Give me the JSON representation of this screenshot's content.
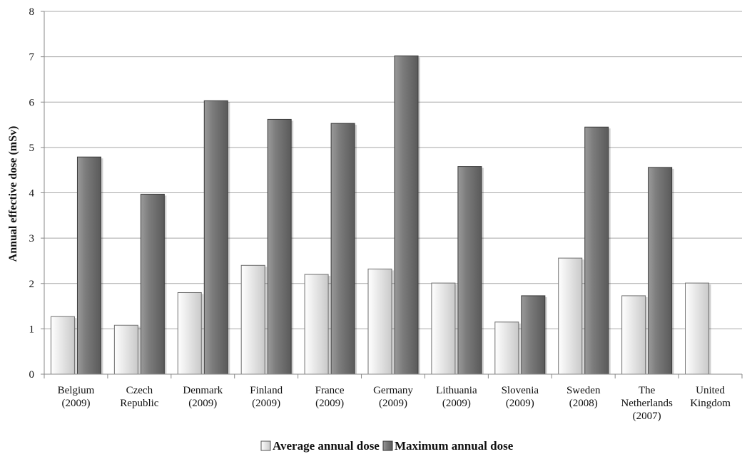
{
  "chart_data": {
    "type": "bar",
    "categories": [
      [
        "Belgium",
        "(2009)"
      ],
      [
        "Czech",
        "Republic"
      ],
      [
        "Denmark",
        "(2009)"
      ],
      [
        "Finland",
        "(2009)"
      ],
      [
        "France",
        "(2009)"
      ],
      [
        "Germany",
        "(2009)"
      ],
      [
        "Lithuania",
        "(2009)"
      ],
      [
        "Slovenia",
        "(2009)"
      ],
      [
        "Sweden",
        "(2008)"
      ],
      [
        "The",
        "Netherlands",
        "(2007)"
      ],
      [
        "United",
        "Kingdom"
      ]
    ],
    "series": [
      {
        "name": "Average annual dose",
        "color": "#e8e8e8",
        "values": [
          1.27,
          1.08,
          1.8,
          2.4,
          2.2,
          2.32,
          2.01,
          1.15,
          2.56,
          1.73,
          2.01
        ]
      },
      {
        "name": "Maximum annual dose",
        "color": "#7a7a7a",
        "values": [
          4.79,
          3.97,
          6.03,
          5.62,
          5.53,
          7.02,
          4.58,
          1.73,
          5.45,
          4.56,
          null
        ]
      }
    ],
    "ylabel": "Annual effective dose (mSv)",
    "xlabel": "",
    "ylim": [
      0,
      8
    ],
    "yticks": [
      "0",
      "1",
      "2",
      "3",
      "4",
      "5",
      "6",
      "7",
      "8"
    ],
    "grid": true,
    "legend": "bottom"
  }
}
